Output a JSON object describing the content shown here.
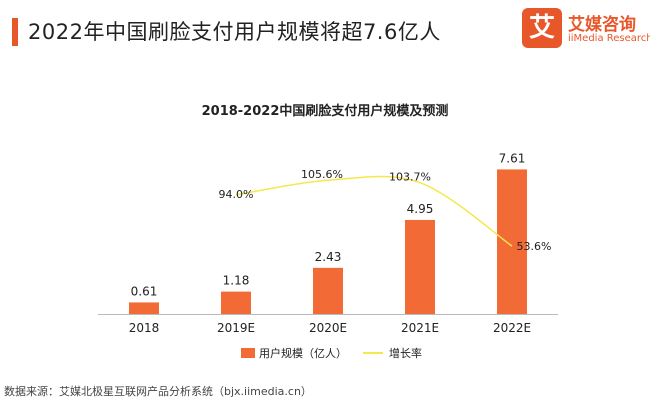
{
  "header": {
    "title": "2022年中国刷脸支付用户规模将超7.6亿人"
  },
  "logo": {
    "mark": "艾",
    "name": "艾媒咨询",
    "english": "iiMedia Research"
  },
  "source": "数据来源：艾媒北极星互联网产品分析系统（bjx.iimedia.cn）",
  "colors": {
    "bar": "#f26a35",
    "line": "#f5e84c",
    "accent": "#e8572a"
  },
  "chart_data": {
    "type": "bar",
    "title": "2018-2022中国刷脸支付用户规模及预测",
    "categories": [
      "2018",
      "2019E",
      "2020E",
      "2021E",
      "2022E"
    ],
    "series": [
      {
        "name": "用户规模（亿人）",
        "type": "bar",
        "values": [
          0.61,
          1.18,
          2.43,
          4.95,
          7.61
        ]
      },
      {
        "name": "增长率",
        "type": "line",
        "values": [
          null,
          94.0,
          105.6,
          103.7,
          53.6
        ]
      }
    ],
    "bar_labels": [
      "0.61",
      "1.18",
      "2.43",
      "4.95",
      "7.61"
    ],
    "line_labels": [
      "",
      "94.0%",
      "105.6%",
      "103.7%",
      "53.6%"
    ],
    "ylim": [
      0,
      8
    ],
    "ylim_secondary": [
      0,
      120
    ],
    "legend_position": "bottom",
    "grid": false
  }
}
